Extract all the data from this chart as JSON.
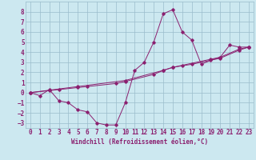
{
  "title": "",
  "xlabel": "Windchill (Refroidissement éolien,°C)",
  "bg_color": "#cce8f0",
  "grid_color": "#9bbccc",
  "line_color": "#8b2070",
  "xlim": [
    -0.5,
    23.5
  ],
  "ylim": [
    -3.5,
    9.0
  ],
  "xticks": [
    0,
    1,
    2,
    3,
    4,
    5,
    6,
    7,
    8,
    9,
    10,
    11,
    12,
    13,
    14,
    15,
    16,
    17,
    18,
    19,
    20,
    21,
    22,
    23
  ],
  "yticks": [
    -3,
    -2,
    -1,
    0,
    1,
    2,
    3,
    4,
    5,
    6,
    7,
    8
  ],
  "curve1_x": [
    0,
    1,
    2,
    3,
    4,
    5,
    6,
    7,
    8,
    9,
    10,
    11,
    12,
    13,
    14,
    15,
    16,
    17,
    18,
    19,
    20,
    21,
    22,
    23
  ],
  "curve1_y": [
    0,
    -0.3,
    0.3,
    -0.8,
    -1.0,
    -1.7,
    -1.9,
    -3.0,
    -3.2,
    -3.2,
    -1.0,
    2.2,
    3.0,
    5.0,
    7.8,
    8.2,
    6.0,
    5.2,
    2.8,
    3.2,
    3.5,
    4.7,
    4.5,
    4.5
  ],
  "curve2_x": [
    0,
    2,
    3,
    5,
    6,
    9,
    10,
    13,
    14,
    15,
    16,
    19,
    20,
    22,
    23
  ],
  "curve2_y": [
    0,
    0.2,
    0.3,
    0.5,
    0.6,
    0.9,
    1.1,
    1.8,
    2.2,
    2.5,
    2.7,
    3.3,
    3.5,
    4.3,
    4.5
  ],
  "curve3_x": [
    0,
    5,
    10,
    14,
    15,
    17,
    20,
    22,
    23
  ],
  "curve3_y": [
    0,
    0.6,
    1.2,
    2.2,
    2.5,
    2.8,
    3.4,
    4.2,
    4.5
  ],
  "tick_fontsize": 5.5,
  "xlabel_fontsize": 5.5
}
